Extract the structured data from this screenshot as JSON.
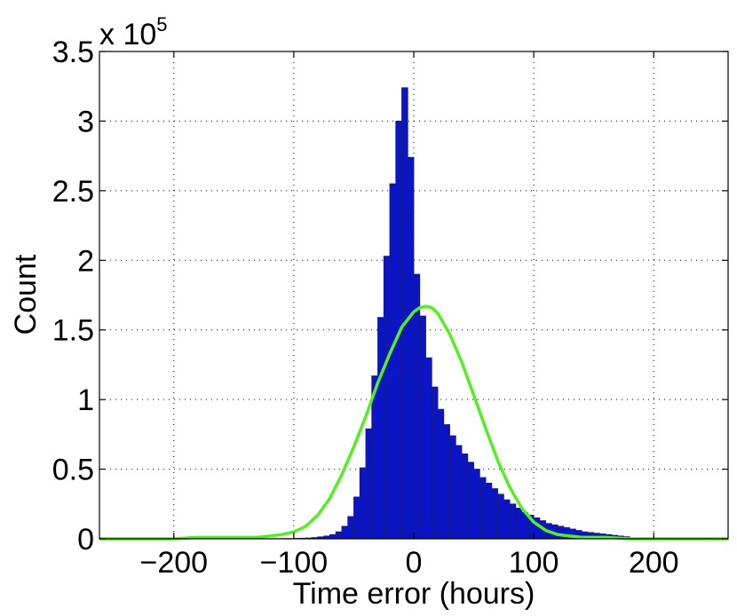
{
  "chart_data": {
    "type": "bar",
    "xlabel": "Time error (hours)",
    "ylabel": "Count",
    "y_multiplier": {
      "base": "x 10",
      "exponent": "5"
    },
    "xlim": [
      -262,
      262
    ],
    "ylim": [
      0,
      3.5
    ],
    "x_ticks": [
      -200,
      -100,
      0,
      100,
      200
    ],
    "x_tick_labels": [
      "−200",
      "−100",
      "0",
      "100",
      "200"
    ],
    "y_ticks": [
      0,
      0.5,
      1,
      1.5,
      2,
      2.5,
      3,
      3.5
    ],
    "y_tick_labels": [
      "0",
      "0.5",
      "1",
      "1.5",
      "2",
      "2.5",
      "3",
      "3.5"
    ],
    "grid": true,
    "colors": {
      "bars": "#0a14c8",
      "bar_edge": "#1e1e6e",
      "fit_line": "#55ee22"
    },
    "bin_width": 5,
    "series": [
      {
        "type": "histogram",
        "bin_centers": [
          -117.5,
          -112.5,
          -107.5,
          -102.5,
          -97.5,
          -92.5,
          -87.5,
          -82.5,
          -77.5,
          -72.5,
          -67.5,
          -62.5,
          -57.5,
          -52.5,
          -47.5,
          -42.5,
          -37.5,
          -32.5,
          -27.5,
          -22.5,
          -17.5,
          -12.5,
          -7.5,
          -2.5,
          2.5,
          7.5,
          12.5,
          17.5,
          22.5,
          27.5,
          32.5,
          37.5,
          42.5,
          47.5,
          52.5,
          57.5,
          62.5,
          67.5,
          72.5,
          77.5,
          82.5,
          87.5,
          92.5,
          97.5,
          102.5,
          107.5,
          112.5,
          117.5,
          122.5,
          127.5,
          132.5,
          137.5,
          142.5,
          147.5,
          152.5,
          157.5,
          162.5,
          167.5,
          172.5,
          177.5
        ],
        "values": [
          0.001,
          0.001,
          0.002,
          0.002,
          0.003,
          0.004,
          0.006,
          0.009,
          0.014,
          0.02,
          0.03,
          0.05,
          0.09,
          0.16,
          0.3,
          0.51,
          0.79,
          1.17,
          1.59,
          2.03,
          2.55,
          3.0,
          3.24,
          2.74,
          1.9,
          1.6,
          1.3,
          1.09,
          0.93,
          0.82,
          0.74,
          0.67,
          0.61,
          0.55,
          0.5,
          0.44,
          0.4,
          0.36,
          0.32,
          0.28,
          0.25,
          0.22,
          0.19,
          0.17,
          0.15,
          0.13,
          0.11,
          0.1,
          0.09,
          0.08,
          0.07,
          0.06,
          0.05,
          0.045,
          0.04,
          0.035,
          0.03,
          0.025,
          0.02,
          0.015
        ]
      },
      {
        "type": "line",
        "x": [
          -262,
          -240,
          -220,
          -200,
          -180,
          -160,
          -140,
          -130,
          -120,
          -110,
          -100,
          -90,
          -80,
          -70,
          -60,
          -50,
          -40,
          -30,
          -20,
          -10,
          0,
          5,
          10,
          15,
          20,
          30,
          40,
          50,
          60,
          70,
          80,
          90,
          100,
          110,
          120,
          130,
          140,
          150,
          160,
          180,
          200,
          220,
          240,
          262
        ],
        "y": [
          0.0,
          0.0,
          0.0,
          0.0,
          0.01,
          0.01,
          0.01,
          0.01,
          0.02,
          0.03,
          0.05,
          0.09,
          0.17,
          0.29,
          0.46,
          0.66,
          0.88,
          1.12,
          1.33,
          1.52,
          1.63,
          1.66,
          1.67,
          1.66,
          1.62,
          1.47,
          1.27,
          1.03,
          0.79,
          0.56,
          0.37,
          0.22,
          0.12,
          0.06,
          0.03,
          0.02,
          0.01,
          0.01,
          0.01,
          0.0,
          0.0,
          0.0,
          0.0,
          0.0
        ]
      }
    ]
  }
}
